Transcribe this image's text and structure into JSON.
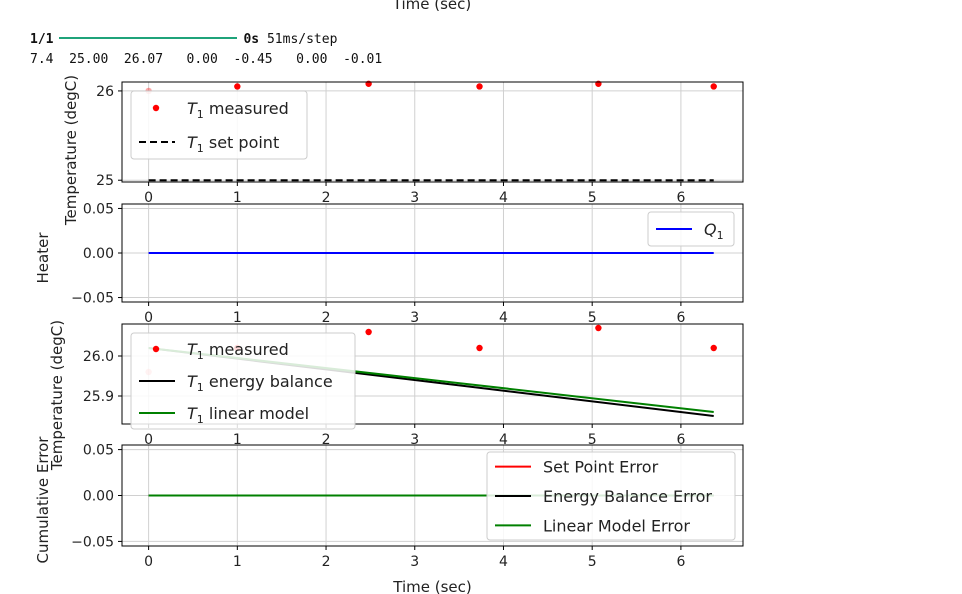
{
  "console": {
    "progress_count": "1/1",
    "progress_time": "0s",
    "progress_rate": "51ms/step",
    "values_line": "7.4  25.00  26.07   0.00  -0.45   0.00  -0.01"
  },
  "figure_top_label": "Time (sec)",
  "chart_data": [
    {
      "type": "scatter",
      "ylabel": "Temperature (degC)",
      "xlim": [
        -0.3,
        6.7
      ],
      "ylim": [
        24.98,
        26.1
      ],
      "yticks": [
        25,
        26
      ],
      "xticks": [
        0,
        1,
        2,
        3,
        4,
        5,
        6
      ],
      "grid": true,
      "legend_placement": "upper-left",
      "series": [
        {
          "name": "T_1 measured",
          "kind": "scatter",
          "color": "#ff0000",
          "x": [
            0,
            1,
            2.48,
            3.73,
            5.07,
            6.37
          ],
          "y": [
            26.0,
            26.05,
            26.08,
            26.05,
            26.08,
            26.05
          ]
        },
        {
          "name": "T_1 set point",
          "kind": "dashed",
          "color": "#000000",
          "x": [
            0,
            6.37
          ],
          "y": [
            25.0,
            25.0
          ]
        }
      ]
    },
    {
      "type": "line",
      "ylabel": "Heater",
      "xlim": [
        -0.3,
        6.7
      ],
      "ylim": [
        -0.055,
        0.055
      ],
      "yticks": [
        0.05,
        0.0,
        -0.05
      ],
      "ytick_labels": [
        "0.05",
        "0.00",
        "−0.05"
      ],
      "xticks": [
        0,
        1,
        2,
        3,
        4,
        5,
        6
      ],
      "grid": true,
      "legend_placement": "upper-right",
      "series": [
        {
          "name": "Q_1",
          "kind": "line",
          "color": "#0000ff",
          "x": [
            0,
            6.37
          ],
          "y": [
            0,
            0
          ]
        }
      ]
    },
    {
      "type": "line",
      "ylabel": "Temperature (degC)",
      "xlim": [
        -0.3,
        6.7
      ],
      "ylim": [
        25.83,
        26.08
      ],
      "yticks": [
        26.0,
        25.9
      ],
      "ytick_labels": [
        "26.0",
        "25.9"
      ],
      "xticks": [
        0,
        1,
        2,
        3,
        4,
        5,
        6
      ],
      "grid": true,
      "legend_placement": "upper-left",
      "series": [
        {
          "name": "T_1 measured",
          "kind": "scatter",
          "color": "#ff0000",
          "x": [
            0,
            1,
            2.48,
            3.73,
            5.07,
            6.37
          ],
          "y": [
            25.96,
            26.02,
            26.06,
            26.02,
            26.07,
            26.02
          ]
        },
        {
          "name": "T_1 energy balance",
          "kind": "line",
          "color": "#000000",
          "x": [
            0,
            6.37
          ],
          "y": [
            26.02,
            25.85
          ]
        },
        {
          "name": "T_1 linear model",
          "kind": "line",
          "color": "#008000",
          "x": [
            0,
            6.37
          ],
          "y": [
            26.02,
            25.86
          ]
        }
      ]
    },
    {
      "type": "line",
      "ylabel": "Cumulative Error",
      "xlabel": "Time (sec)",
      "xlim": [
        -0.3,
        6.7
      ],
      "ylim": [
        -0.055,
        0.055
      ],
      "yticks": [
        0.05,
        0.0,
        -0.05
      ],
      "ytick_labels": [
        "0.05",
        "0.00",
        "−0.05"
      ],
      "xticks": [
        0,
        1,
        2,
        3,
        4,
        5,
        6
      ],
      "grid": true,
      "legend_placement": "upper-right",
      "series": [
        {
          "name": "Set Point Error",
          "kind": "line",
          "color": "#ff0000",
          "x": [
            0,
            6.37
          ],
          "y": [
            0,
            0
          ]
        },
        {
          "name": "Energy Balance Error",
          "kind": "line",
          "color": "#000000",
          "x": [
            0,
            6.37
          ],
          "y": [
            0,
            0
          ]
        },
        {
          "name": "Linear Model Error",
          "kind": "line",
          "color": "#008000",
          "x": [
            0,
            6.37
          ],
          "y": [
            0,
            0
          ]
        }
      ]
    }
  ]
}
